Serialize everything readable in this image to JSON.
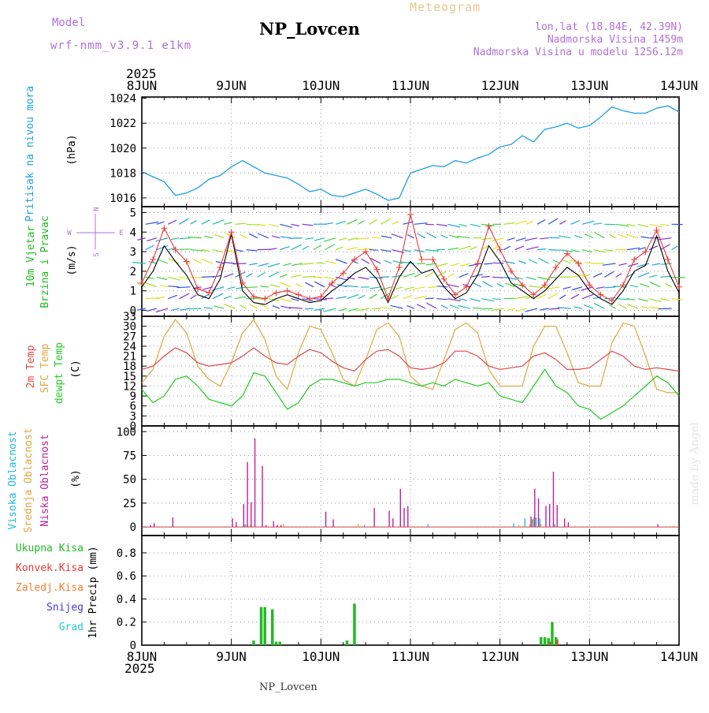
{
  "header": {
    "model_label": "Model",
    "model_name": "wrf-nmm_v3.9.1 e1km",
    "product": "Meteogram",
    "station": "NP_Lovcen",
    "lonlat": "lon,lat (18.84E, 42.39N)",
    "altitude": "Nadmorska Visina 1459m",
    "model_altitude": "Nadmorska Visina u modelu 1256.12m",
    "footer_station": "NP_Lovcen",
    "watermark": "made by Angel"
  },
  "time_axis": {
    "year": "2025",
    "day_labels": [
      "8JUN",
      "9JUN",
      "10JUN",
      "11JUN",
      "12JUN",
      "13JUN",
      "14JUN"
    ],
    "range_hours": [
      0,
      144
    ]
  },
  "panels": {
    "pressure": {
      "labels": [
        "Pritisak na nivou mora"
      ],
      "unit": "(hPa)",
      "yticks": [
        "1016",
        "1018",
        "1020",
        "1022",
        "1024"
      ]
    },
    "wind": {
      "labels": [
        "10m Vjetar",
        "Brzina i Pravac"
      ],
      "unit": "(m/s)",
      "yticks": [
        "0",
        "1",
        "2",
        "3",
        "4",
        "5"
      ],
      "compass": {
        "n": "N",
        "s": "S",
        "e": "E",
        "w": "W"
      }
    },
    "temperature": {
      "labels": [
        "2m Temp",
        "SFC Temp",
        "dewpt Temp"
      ],
      "unit": "(C)",
      "yticks": [
        "0",
        "3",
        "6",
        "9",
        "12",
        "15",
        "18",
        "21",
        "24",
        "27",
        "30",
        "33"
      ]
    },
    "cloud": {
      "labels": [
        "Visoka Oblacnost",
        "Srednja Oblacnost",
        "Niska Oblacnost"
      ],
      "unit": "(%)",
      "yticks": [
        "0",
        "25",
        "50",
        "75",
        "100"
      ]
    },
    "precip": {
      "legend": [
        "Ukupna Kisa",
        "Konvek.Kisa",
        "Zaledj.Kisa",
        "Snijeg",
        "Grad"
      ],
      "unit": "1hr Precip (mm)",
      "yticks": [
        "0",
        "0.2",
        "0.4",
        "0.6",
        "0.8"
      ]
    }
  },
  "colors": {
    "pressure": "#1f9fe0",
    "wind_speed": "#000000",
    "wind_gust": "#e83a3a",
    "temp2m": "#e04848",
    "sfc_temp": "#e0a840",
    "dewpoint": "#22cc22",
    "cloud_high": "#22b8e0",
    "cloud_mid": "#e0a840",
    "cloud_low": "#c0209a",
    "rain_total": "#22bb22",
    "rain_conv": "#e83a3a",
    "rain_frz": "#f08030",
    "snow": "#4040e0",
    "hail": "#22cccc",
    "title": "#000000",
    "model": "#b070d8",
    "meteogram": "#e8c890"
  },
  "chart_data": [
    {
      "type": "line",
      "title": "Pritisak na nivou mora",
      "ylabel": "(hPa)",
      "ylim": [
        1015.3,
        1024.1
      ],
      "x": [
        0,
        3,
        6,
        9,
        12,
        15,
        18,
        21,
        24,
        27,
        30,
        33,
        36,
        39,
        42,
        45,
        48,
        51,
        54,
        57,
        60,
        63,
        66,
        69,
        72,
        75,
        78,
        81,
        84,
        87,
        90,
        93,
        96,
        99,
        102,
        105,
        108,
        111,
        114,
        117,
        120,
        123,
        126,
        129,
        132,
        135,
        138,
        141,
        144
      ],
      "series": [
        {
          "name": "Pritisak na nivou mora",
          "values": [
            1018.1,
            1017.7,
            1017.3,
            1016.2,
            1016.4,
            1016.8,
            1017.5,
            1017.8,
            1018.5,
            1019.0,
            1018.5,
            1018.0,
            1017.8,
            1017.6,
            1017.1,
            1016.5,
            1016.7,
            1016.2,
            1016.1,
            1016.4,
            1016.7,
            1016.3,
            1015.8,
            1016.0,
            1018.0,
            1018.3,
            1018.6,
            1018.5,
            1019.0,
            1018.8,
            1019.2,
            1019.5,
            1020.1,
            1020.3,
            1021.0,
            1020.5,
            1021.5,
            1021.7,
            1022.0,
            1021.6,
            1021.8,
            1022.5,
            1023.3,
            1023.0,
            1022.8,
            1022.8,
            1023.2,
            1023.4,
            1022.9
          ]
        }
      ]
    },
    {
      "type": "line",
      "title": "10m Vjetar Brzina i Pravac",
      "ylabel": "(m/s)",
      "ylim": [
        -0.3,
        5.3
      ],
      "x": [
        0,
        3,
        6,
        9,
        12,
        15,
        18,
        21,
        24,
        27,
        30,
        33,
        36,
        39,
        42,
        45,
        48,
        51,
        54,
        57,
        60,
        63,
        66,
        69,
        72,
        75,
        78,
        81,
        84,
        87,
        90,
        93,
        96,
        99,
        102,
        105,
        108,
        111,
        114,
        117,
        120,
        123,
        126,
        129,
        132,
        135,
        138,
        141,
        144
      ],
      "series": [
        {
          "name": "Brzina",
          "values": [
            1.2,
            2.0,
            3.3,
            2.5,
            1.8,
            0.8,
            0.6,
            1.6,
            3.9,
            1.0,
            0.4,
            0.3,
            0.6,
            0.8,
            0.6,
            0.4,
            0.5,
            1.0,
            1.4,
            1.9,
            2.2,
            1.6,
            0.4,
            1.7,
            2.5,
            1.9,
            2.1,
            1.2,
            0.6,
            0.9,
            1.8,
            3.3,
            2.5,
            1.4,
            1.0,
            0.6,
            1.0,
            1.6,
            2.2,
            1.8,
            1.0,
            0.6,
            0.3,
            1.0,
            2.0,
            2.3,
            3.8,
            2.0,
            0.9
          ]
        },
        {
          "name": "Udari",
          "values": [
            1.4,
            2.6,
            4.2,
            3.1,
            2.5,
            1.1,
            0.9,
            2.2,
            4.0,
            1.4,
            0.7,
            0.6,
            0.9,
            1.0,
            0.8,
            0.6,
            0.7,
            1.4,
            1.9,
            2.6,
            3.0,
            2.1,
            0.6,
            2.2,
            4.9,
            2.6,
            2.6,
            1.6,
            0.8,
            1.2,
            2.4,
            4.3,
            3.1,
            2.0,
            1.3,
            0.8,
            1.3,
            2.2,
            2.9,
            2.4,
            1.3,
            0.8,
            0.5,
            1.3,
            2.6,
            3.0,
            4.1,
            2.6,
            1.2
          ]
        }
      ]
    },
    {
      "type": "line",
      "title": "2m Temp / SFC Temp / dewpt Temp",
      "ylabel": "(C)",
      "ylim": [
        0,
        33
      ],
      "x": [
        0,
        3,
        6,
        9,
        12,
        15,
        18,
        21,
        24,
        27,
        30,
        33,
        36,
        39,
        42,
        45,
        48,
        51,
        54,
        57,
        60,
        63,
        66,
        69,
        72,
        75,
        78,
        81,
        84,
        87,
        90,
        93,
        96,
        99,
        102,
        105,
        108,
        111,
        114,
        117,
        120,
        123,
        126,
        129,
        132,
        135,
        138,
        141,
        144
      ],
      "series": [
        {
          "name": "2m Temp",
          "values": [
            17,
            18,
            21,
            23.5,
            22,
            19,
            18,
            18.5,
            19,
            21,
            23.5,
            21,
            19,
            18.5,
            21,
            23,
            22,
            19.5,
            17.5,
            16.5,
            20,
            22.5,
            23,
            21,
            17.5,
            17,
            17.5,
            19,
            22.5,
            22.5,
            21,
            18,
            17,
            17.5,
            18,
            21,
            22,
            20,
            17,
            17,
            17.5,
            20,
            22.5,
            21,
            18,
            17,
            17.5,
            17,
            16.5
          ]
        },
        {
          "name": "SFC Temp",
          "values": [
            13,
            17,
            27,
            32,
            28,
            18,
            14,
            12,
            19,
            28,
            32,
            26,
            15,
            11,
            22,
            30,
            29,
            22,
            14,
            12,
            20,
            29,
            31,
            27,
            15,
            12,
            11,
            20,
            29,
            31,
            28,
            17,
            12,
            12,
            12,
            24,
            30,
            30,
            22,
            13,
            12,
            12,
            25,
            31,
            30,
            21,
            11,
            10,
            10
          ]
        },
        {
          "name": "dewpt Temp",
          "values": [
            11,
            7,
            9,
            14,
            15,
            12,
            8,
            7,
            6,
            9,
            16,
            15,
            10,
            5,
            7,
            12,
            14,
            14,
            13,
            12,
            13,
            13,
            14,
            14,
            13,
            12,
            13,
            12,
            14,
            13,
            12,
            13,
            9,
            8,
            7,
            12,
            17,
            12,
            10,
            6,
            5,
            2,
            4,
            6,
            9,
            12,
            15,
            13,
            9
          ]
        }
      ]
    },
    {
      "type": "bar",
      "title": "Oblacnost",
      "ylabel": "(%)",
      "ylim": [
        0,
        100
      ],
      "series": [
        {
          "name": "Visoka Oblacnost",
          "x": [
            28,
            60,
            77,
            100,
            103,
            105,
            106,
            107,
            111
          ],
          "values": [
            3,
            2,
            3,
            4,
            9,
            8,
            10,
            9,
            3
          ]
        },
        {
          "name": "Srednja Oblacnost",
          "x": [
            28,
            29,
            38,
            58,
            101,
            102,
            104,
            105,
            107
          ],
          "values": [
            2,
            2,
            3,
            3,
            2,
            1,
            3,
            10,
            3
          ]
        },
        {
          "name": "Niska Oblacnost",
          "x": [
            2,
            3,
            8,
            24,
            25,
            27,
            28,
            29,
            30,
            32,
            33,
            35,
            36,
            37,
            49,
            51,
            62,
            66,
            67,
            69,
            70,
            71,
            104,
            105,
            106,
            108,
            109,
            110,
            111,
            113,
            114,
            138
          ],
          "values": [
            2,
            4,
            10,
            9,
            5,
            24,
            68,
            26,
            93,
            64,
            2,
            6,
            2,
            2,
            16,
            8,
            20,
            17,
            9,
            40,
            20,
            22,
            11,
            40,
            30,
            22,
            24,
            58,
            23,
            9,
            5,
            3
          ]
        }
      ]
    },
    {
      "type": "bar",
      "title": "1hr Precip",
      "ylabel": "1hr Precip (mm)",
      "ylim": [
        0,
        0.95
      ],
      "series": [
        {
          "name": "Ukupna Kisa",
          "x": [
            30,
            32,
            33,
            35,
            36,
            37,
            55,
            57,
            107,
            108,
            109,
            110,
            111
          ],
          "values": [
            0.04,
            0.33,
            0.33,
            0.31,
            0.03,
            0.03,
            0.04,
            0.36,
            0.07,
            0.07,
            0.06,
            0.2,
            0.07
          ]
        },
        {
          "name": "Konvek.Kisa",
          "x": [
            109,
            111
          ],
          "values": [
            0.03,
            0.05
          ]
        },
        {
          "name": "Zaledj.Kisa",
          "x": [],
          "values": []
        },
        {
          "name": "Snijeg",
          "x": [],
          "values": []
        },
        {
          "name": "Grad",
          "x": [],
          "values": []
        }
      ]
    }
  ]
}
